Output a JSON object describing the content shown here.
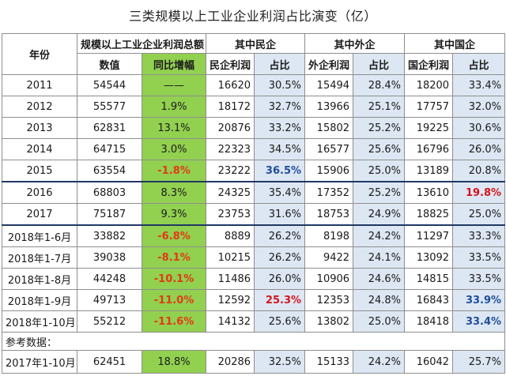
{
  "title": "三类规模以上工业企业利润占比演变（亿）",
  "headers": {
    "year": "年份",
    "group_total": "规模以上工业企业利润总额",
    "group_private": "其中民企",
    "group_foreign": "其中外企",
    "group_state": "其中国企",
    "value": "数值",
    "yoy": "同比增幅",
    "private_profit": "民企利润",
    "foreign_profit": "外企利润",
    "state_profit": "国企利润",
    "share": "占比"
  },
  "rows": [
    {
      "year": "2011",
      "value": "54544",
      "yoy": "——",
      "p": "16620",
      "ps": "30.5%",
      "f": "15494",
      "fs": "28.4%",
      "s": "18200",
      "ss": "33.4%"
    },
    {
      "year": "2012",
      "value": "55577",
      "yoy": "1.9%",
      "p": "18172",
      "ps": "32.7%",
      "f": "13966",
      "fs": "25.1%",
      "s": "17757",
      "ss": "32.0%"
    },
    {
      "year": "2013",
      "value": "62831",
      "yoy": "13.1%",
      "p": "20876",
      "ps": "33.2%",
      "f": "15802",
      "fs": "25.2%",
      "s": "19225",
      "ss": "30.6%"
    },
    {
      "year": "2014",
      "value": "64715",
      "yoy": "3.0%",
      "p": "22323",
      "ps": "34.5%",
      "f": "16577",
      "fs": "25.6%",
      "s": "16796",
      "ss": "26.0%"
    },
    {
      "year": "2015",
      "value": "63554",
      "yoy": "-1.8%",
      "p": "23222",
      "ps": "36.5%",
      "f": "15906",
      "fs": "25.0%",
      "s": "13189",
      "ss": "20.8%"
    },
    {
      "year": "2016",
      "value": "68803",
      "yoy": "8.3%",
      "p": "24325",
      "ps": "35.4%",
      "f": "17352",
      "fs": "25.2%",
      "s": "13610",
      "ss": "19.8%"
    },
    {
      "year": "2017",
      "value": "75187",
      "yoy": "9.3%",
      "p": "23753",
      "ps": "31.6%",
      "f": "18753",
      "fs": "24.9%",
      "s": "18825",
      "ss": "25.0%"
    },
    {
      "year": "2018年1-6月",
      "value": "33882",
      "yoy": "-6.8%",
      "p": "8889",
      "ps": "26.2%",
      "f": "8198",
      "fs": "24.2%",
      "s": "11297",
      "ss": "33.3%"
    },
    {
      "year": "2018年1-7月",
      "value": "39038",
      "yoy": "-8.1%",
      "p": "10215",
      "ps": "26.2%",
      "f": "9422",
      "fs": "24.1%",
      "s": "13092",
      "ss": "33.5%"
    },
    {
      "year": "2018年1-8月",
      "value": "44248",
      "yoy": "-10.1%",
      "p": "11486",
      "ps": "26.0%",
      "f": "10906",
      "fs": "24.6%",
      "s": "14815",
      "ss": "33.5%"
    },
    {
      "year": "2018年1-9月",
      "value": "49713",
      "yoy": "-11.0%",
      "p": "12592",
      "ps": "25.3%",
      "f": "12353",
      "fs": "24.8%",
      "s": "16843",
      "ss": "33.9%"
    },
    {
      "year": "2018年1-10月",
      "value": "55212",
      "yoy": "-11.6%",
      "p": "14132",
      "ps": "25.6%",
      "f": "13802",
      "fs": "25.0%",
      "s": "18418",
      "ss": "33.4%"
    }
  ],
  "reference_label": "参考数据：",
  "reference_row": {
    "year": "2017年1-10月",
    "value": "62451",
    "yoy": "18.8%",
    "p": "20286",
    "ps": "32.5%",
    "f": "15133",
    "fs": "24.2%",
    "s": "16042",
    "ss": "25.7%"
  },
  "colors": {
    "yoy_fill": "#92d050",
    "share_fill": "#dde7f3",
    "negative": "#e03a14",
    "highlight_red": "#d4141c",
    "highlight_blue": "#1f4e9a"
  }
}
